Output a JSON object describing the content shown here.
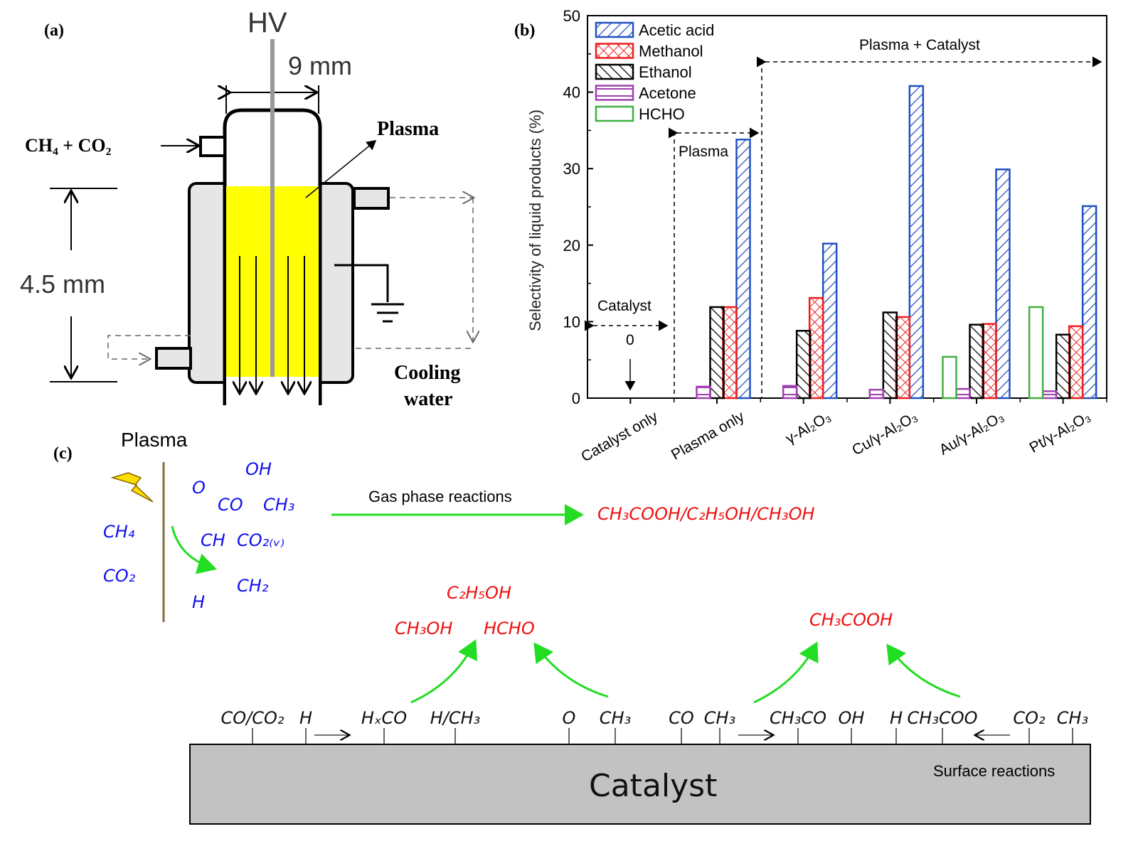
{
  "panel_a": {
    "label": "(a)",
    "hv": "HV",
    "gap": "9 mm",
    "gas_in": "CH₄ + CO₂",
    "plasma": "Plasma",
    "length": "4.5 mm",
    "cooling_1": "Cooling",
    "cooling_2": "water",
    "plasma_color": "#ffff00"
  },
  "panel_b": {
    "label": "(b)",
    "plasma_region": "Plasma",
    "plasma_catalyst_region": "Plasma + Catalyst",
    "catalyst_region": "Catalyst",
    "catalyst_zero": "0"
  },
  "chart_data": {
    "type": "bar",
    "title": "",
    "xlabel": "",
    "ylabel": "Selectivity of liquid products (%)",
    "ylim": [
      0,
      50
    ],
    "yticks": [
      "0",
      "10",
      "20",
      "30",
      "40",
      "50"
    ],
    "grid": false,
    "legend_position": "top-left",
    "categories": [
      "Catalyst only",
      "Plasma only",
      "γ-Al₂O₃",
      "Cu/γ-Al₂O₃",
      "Au/γ-Al₂O₃",
      "Pt/γ-Al₂O₃"
    ],
    "series": [
      {
        "name": "Acetic acid",
        "color": "#2050c0",
        "pattern": "diagonal",
        "values": [
          0,
          33.8,
          20.2,
          40.8,
          29.9,
          25.1
        ]
      },
      {
        "name": "Methanol",
        "color": "#ee2020",
        "pattern": "crosshatch",
        "values": [
          0,
          11.9,
          13.1,
          10.6,
          9.7,
          9.4
        ]
      },
      {
        "name": "Ethanol",
        "color": "#000000",
        "pattern": "backdiagonal",
        "values": [
          0,
          11.9,
          8.8,
          11.2,
          9.6,
          8.3
        ]
      },
      {
        "name": "Acetone",
        "color": "#a040b0",
        "pattern": "horizontal",
        "values": [
          0,
          1.5,
          1.6,
          1.1,
          1.2,
          0.9
        ]
      },
      {
        "name": "HCHO",
        "color": "#40b040",
        "pattern": "none",
        "values": [
          0,
          0,
          0,
          0,
          5.4,
          11.9
        ]
      }
    ]
  },
  "panel_c": {
    "label": "(c)",
    "plasma": "Plasma",
    "reactants": [
      "CH₄",
      "CO₂"
    ],
    "species": [
      "O",
      "OH",
      "CO",
      "CH₃",
      "CH",
      "CO₂₍ᵥ₎",
      "CH₂",
      "H"
    ],
    "gas_phase": "Gas phase reactions",
    "gas_products": "CH₃COOH/C₂H₅OH/CH₃OH",
    "products_left": [
      "C₂H₅OH",
      "CH₃OH",
      "HCHO"
    ],
    "product_right": "CH₃COOH",
    "surface_species": [
      "CO/CO₂",
      "H",
      "HₓCO",
      "H/CH₃",
      "O",
      "CH₃",
      "CO",
      "CH₃",
      "CH₃CO",
      "OH",
      "H",
      "CH₃COO",
      "CO₂",
      "CH₃"
    ],
    "catalyst": "Catalyst",
    "surface_reactions": "Surface reactions"
  }
}
